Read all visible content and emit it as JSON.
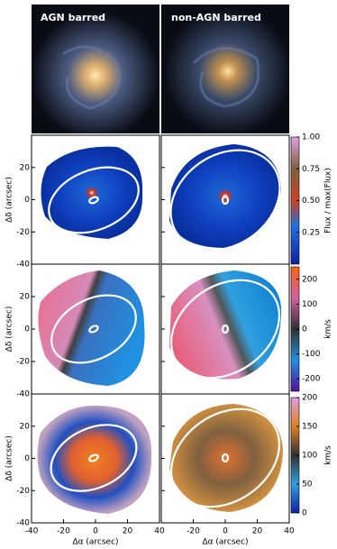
{
  "header": {
    "left_title": "AGN barred",
    "right_title": "non-AGN barred"
  },
  "axes": {
    "ylabel": "Δδ (arcsec)",
    "xlabel": "Δα (arcsec)",
    "ylim": [
      -40,
      40
    ],
    "yticks": [
      20,
      0,
      -20,
      -40
    ],
    "xlim": [
      -40,
      40
    ],
    "xticks_left": [
      -40,
      -20,
      0,
      20,
      40
    ],
    "xticks_right": [
      -20,
      0,
      20,
      40
    ]
  },
  "colorbars": [
    {
      "label": "Flux / max(Flux)",
      "lim": [
        0,
        1
      ],
      "ticks": [
        {
          "value": 1,
          "label": "1.00"
        },
        {
          "value": 0.75,
          "label": "0.75"
        },
        {
          "value": 0.5,
          "label": "0.50"
        },
        {
          "value": 0.25,
          "label": "0.25"
        }
      ]
    },
    {
      "label": "km/s",
      "lim": [
        -250,
        250
      ],
      "ticks": [
        200,
        100,
        0,
        -100,
        -200
      ]
    },
    {
      "label": "km/s",
      "lim": [
        0,
        200
      ],
      "ticks": [
        200,
        150,
        100,
        50,
        0
      ]
    }
  ]
}
